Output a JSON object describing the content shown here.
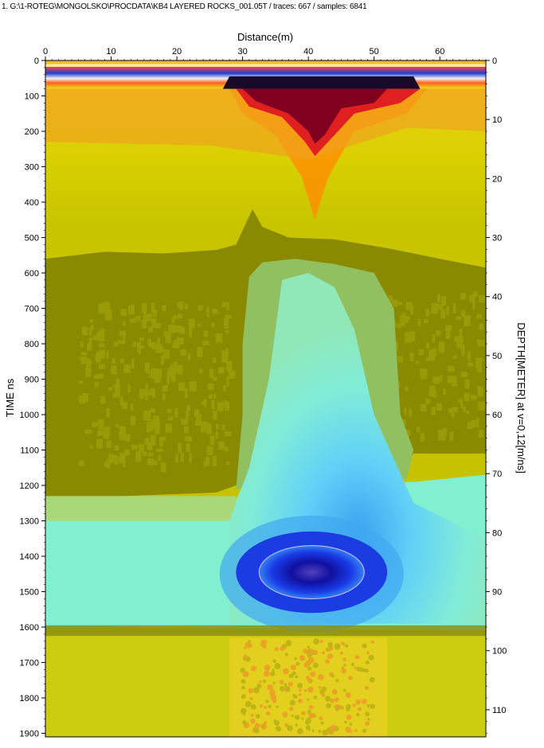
{
  "header": {
    "file_info": "1. G:\\1-ROTEG\\MONGOLSKO\\PROCDATA\\KB4 LAYERED ROCKS_001.05T / traces: 667 / samples: 6841"
  },
  "chart_data": {
    "type": "heatmap",
    "title": "",
    "xlabel": "Distance(m)",
    "ylabel": "TIME ns",
    "y2label": "DEPTH[METER] at v=0,12[m/ns]",
    "xlim": [
      0,
      67
    ],
    "ylim": [
      0,
      1910
    ],
    "y2lim": [
      0,
      114.6
    ],
    "x_ticks": [
      "0",
      "10",
      "20",
      "30",
      "40",
      "50",
      "60"
    ],
    "x_tick_values": [
      0,
      10,
      20,
      30,
      40,
      50,
      60
    ],
    "y_ticks": [
      "0",
      "100",
      "200",
      "300",
      "400",
      "500",
      "600",
      "700",
      "800",
      "900",
      "1000",
      "1100",
      "1200",
      "1300",
      "1400",
      "1500",
      "1600",
      "1700",
      "1800",
      "1900"
    ],
    "y_tick_values": [
      0,
      100,
      200,
      300,
      400,
      500,
      600,
      700,
      800,
      900,
      1000,
      1100,
      1200,
      1300,
      1400,
      1500,
      1600,
      1700,
      1800,
      1900
    ],
    "y2_ticks": [
      "0",
      "10",
      "20",
      "30",
      "40",
      "50",
      "60",
      "70",
      "80",
      "90",
      "100",
      "110"
    ],
    "y2_tick_values": [
      0,
      10,
      20,
      30,
      40,
      50,
      60,
      70,
      80,
      90,
      100,
      110
    ],
    "colors": {
      "olive_light": "#c8c800",
      "olive_dark": "#8a8a00",
      "olive_mid": "#a8a810",
      "green_mid": "#90c060",
      "aqua": "#80f0d0",
      "cyan": "#60d8f8",
      "blue": "#1a3ce0",
      "navy": "#0a0a90",
      "yellow": "#f0f000",
      "orange": "#ff8c00",
      "red": "#e02020",
      "maroon": "#800020",
      "dark_band": "#202060"
    }
  }
}
